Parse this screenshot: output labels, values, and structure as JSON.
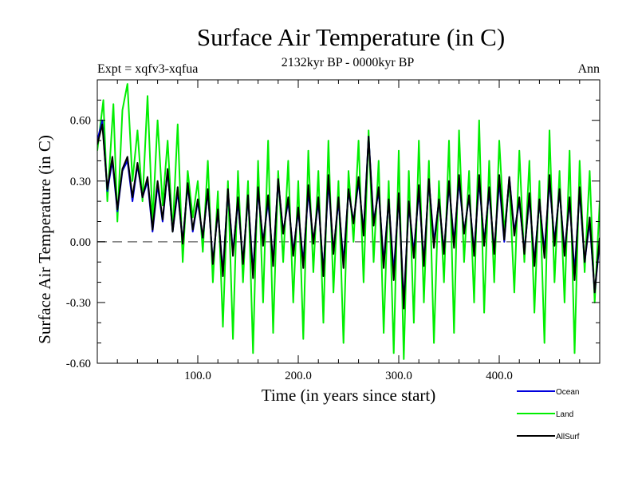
{
  "header": {
    "title": "Surface Air Temperature (in C)",
    "experiment": "Expt = xqfv3-xqfua",
    "period": "2132kyr BP - 0000kyr BP",
    "season": "Ann"
  },
  "chart_data": {
    "type": "line",
    "title": "Surface Air Temperature (in C)",
    "xlabel": "Time (in years since start)",
    "ylabel": "Surface Air Temperature (in C)",
    "xlim": [
      0,
      500
    ],
    "ylim": [
      -0.6,
      0.8
    ],
    "xticks": [
      100,
      200,
      300,
      400
    ],
    "xtick_labels": [
      "100.0",
      "200.0",
      "300.0",
      "400.0"
    ],
    "yticks": [
      -0.6,
      -0.3,
      0.0,
      0.3,
      0.6
    ],
    "ytick_labels": [
      "-0.60",
      "-0.30",
      "0.00",
      "0.30",
      "0.60"
    ],
    "zero_line": 0.0,
    "grid": false,
    "legend_position": "bottom-right",
    "series": [
      {
        "name": "Land",
        "color": "#00ee00",
        "x": [
          0,
          6,
          10,
          16,
          20,
          25,
          30,
          35,
          40,
          45,
          50,
          55,
          60,
          65,
          70,
          75,
          80,
          85,
          90,
          95,
          100,
          105,
          110,
          115,
          120,
          125,
          130,
          135,
          140,
          145,
          150,
          155,
          160,
          165,
          170,
          175,
          180,
          185,
          190,
          195,
          200,
          205,
          210,
          215,
          220,
          225,
          230,
          235,
          240,
          245,
          250,
          255,
          260,
          265,
          270,
          275,
          280,
          285,
          290,
          295,
          300,
          305,
          310,
          315,
          320,
          325,
          330,
          335,
          340,
          345,
          350,
          355,
          360,
          365,
          370,
          375,
          380,
          385,
          390,
          395,
          400,
          405,
          410,
          415,
          420,
          425,
          430,
          435,
          440,
          445,
          450,
          455,
          460,
          465,
          470,
          475,
          480,
          485,
          490,
          495,
          500
        ],
        "values": [
          0.45,
          0.7,
          0.2,
          0.68,
          0.1,
          0.65,
          0.78,
          0.3,
          0.55,
          0.2,
          0.72,
          0.1,
          0.6,
          0.18,
          0.5,
          0.05,
          0.58,
          -0.1,
          0.35,
          0.12,
          0.3,
          -0.05,
          0.4,
          -0.2,
          0.25,
          -0.42,
          0.3,
          -0.48,
          0.35,
          -0.2,
          0.3,
          -0.55,
          0.4,
          -0.3,
          0.5,
          -0.45,
          0.35,
          -0.1,
          0.4,
          -0.3,
          0.3,
          -0.48,
          0.45,
          -0.15,
          0.35,
          -0.4,
          0.5,
          -0.25,
          0.3,
          -0.5,
          0.35,
          0.0,
          0.5,
          -0.2,
          0.55,
          -0.1,
          0.4,
          -0.45,
          0.3,
          -0.55,
          0.45,
          -0.58,
          0.35,
          -0.4,
          0.5,
          -0.3,
          0.4,
          -0.5,
          0.3,
          -0.2,
          0.5,
          -0.45,
          0.55,
          -0.1,
          0.35,
          -0.3,
          0.6,
          -0.35,
          0.4,
          -0.2,
          0.5,
          0.05,
          0.3,
          -0.25,
          0.45,
          -0.1,
          0.4,
          -0.35,
          0.3,
          -0.5,
          0.55,
          -0.2,
          0.35,
          -0.3,
          0.45,
          -0.55,
          0.4,
          -0.15,
          0.35,
          -0.3,
          0.2
        ]
      },
      {
        "name": "Ocean",
        "color": "#0000dd",
        "x": [
          0,
          5,
          10,
          15,
          20,
          25,
          30,
          35,
          40,
          45,
          50,
          55,
          60,
          65,
          70,
          75,
          80,
          85,
          90,
          95,
          100,
          105,
          110,
          115,
          120,
          125,
          130,
          135,
          140,
          145,
          150,
          155,
          160,
          165,
          170,
          175,
          180,
          185,
          190,
          195,
          200,
          205,
          210,
          215,
          220,
          225,
          230,
          235,
          240,
          245,
          250,
          255,
          260,
          265,
          270,
          275,
          280,
          285,
          290,
          295,
          300,
          305,
          310,
          315,
          320,
          325,
          330,
          335,
          340,
          345,
          350,
          355,
          360,
          365,
          370,
          375,
          380,
          385,
          390,
          395,
          400,
          405,
          410,
          415,
          420,
          425,
          430,
          435,
          440,
          445,
          450,
          455,
          460,
          465,
          470,
          475,
          480,
          485,
          490,
          495,
          500
        ],
        "values": [
          0.5,
          0.6,
          0.25,
          0.4,
          0.15,
          0.35,
          0.4,
          0.2,
          0.38,
          0.22,
          0.3,
          0.05,
          0.28,
          0.1,
          0.35,
          0.05,
          0.25,
          0.0,
          0.28,
          0.05,
          0.2,
          0.02,
          0.25,
          -0.1,
          0.15,
          -0.15,
          0.25,
          -0.05,
          0.2,
          -0.1,
          0.22,
          -0.15,
          0.25,
          0.0,
          0.2,
          -0.1,
          0.3,
          0.05,
          0.2,
          -0.05,
          0.15,
          -0.1,
          0.25,
          0.0,
          0.2,
          -0.15,
          0.3,
          -0.05,
          0.2,
          -0.1,
          0.25,
          0.1,
          0.3,
          0.05,
          0.52,
          0.1,
          0.25,
          -0.1,
          0.2,
          -0.15,
          0.22,
          -0.3,
          0.18,
          -0.05,
          0.25,
          -0.1,
          0.3,
          0.0,
          0.2,
          -0.05,
          0.28,
          0.0,
          0.3,
          0.05,
          0.22,
          -0.05,
          0.3,
          0.0,
          0.25,
          -0.05,
          0.3,
          0.0,
          0.32,
          0.05,
          0.2,
          -0.05,
          0.22,
          -0.1,
          0.2,
          -0.05,
          0.3,
          0.0,
          0.25,
          -0.05,
          0.2,
          -0.15,
          0.25,
          -0.1,
          0.1,
          -0.25,
          0.0
        ]
      },
      {
        "name": "AllSurf",
        "color": "#000000",
        "x": [
          0,
          5,
          10,
          15,
          20,
          25,
          30,
          35,
          40,
          45,
          50,
          55,
          60,
          65,
          70,
          75,
          80,
          85,
          90,
          95,
          100,
          105,
          110,
          115,
          120,
          125,
          130,
          135,
          140,
          145,
          150,
          155,
          160,
          165,
          170,
          175,
          180,
          185,
          190,
          195,
          200,
          205,
          210,
          215,
          220,
          225,
          230,
          235,
          240,
          245,
          250,
          255,
          260,
          265,
          270,
          275,
          280,
          285,
          290,
          295,
          300,
          305,
          310,
          315,
          320,
          325,
          330,
          335,
          340,
          345,
          350,
          355,
          360,
          365,
          370,
          375,
          380,
          385,
          390,
          395,
          400,
          405,
          410,
          415,
          420,
          425,
          430,
          435,
          440,
          445,
          450,
          455,
          460,
          465,
          470,
          475,
          480,
          485,
          490,
          495,
          500
        ],
        "values": [
          0.48,
          0.58,
          0.26,
          0.42,
          0.16,
          0.36,
          0.42,
          0.22,
          0.39,
          0.22,
          0.32,
          0.06,
          0.3,
          0.11,
          0.36,
          0.05,
          0.27,
          -0.01,
          0.29,
          0.06,
          0.21,
          0.02,
          0.26,
          -0.11,
          0.16,
          -0.17,
          0.26,
          -0.07,
          0.22,
          -0.11,
          0.23,
          -0.18,
          0.27,
          -0.02,
          0.23,
          -0.12,
          0.31,
          0.04,
          0.22,
          -0.07,
          0.17,
          -0.13,
          0.28,
          -0.01,
          0.22,
          -0.17,
          0.33,
          -0.06,
          0.22,
          -0.13,
          0.26,
          0.09,
          0.32,
          0.03,
          0.52,
          0.08,
          0.27,
          -0.13,
          0.21,
          -0.19,
          0.24,
          -0.33,
          0.2,
          -0.08,
          0.28,
          -0.12,
          0.31,
          -0.03,
          0.21,
          -0.06,
          0.3,
          -0.03,
          0.33,
          0.04,
          0.23,
          -0.07,
          0.33,
          -0.02,
          0.27,
          -0.06,
          0.33,
          0.01,
          0.32,
          0.03,
          0.22,
          -0.06,
          0.24,
          -0.12,
          0.21,
          -0.08,
          0.33,
          -0.02,
          0.26,
          -0.07,
          0.22,
          -0.19,
          0.27,
          -0.1,
          0.12,
          -0.25,
          0.02
        ]
      }
    ],
    "legend": [
      {
        "label": "Ocean",
        "color": "#0000dd"
      },
      {
        "label": "Land",
        "color": "#00ee00"
      },
      {
        "label": "AllSurf",
        "color": "#000000"
      }
    ]
  }
}
